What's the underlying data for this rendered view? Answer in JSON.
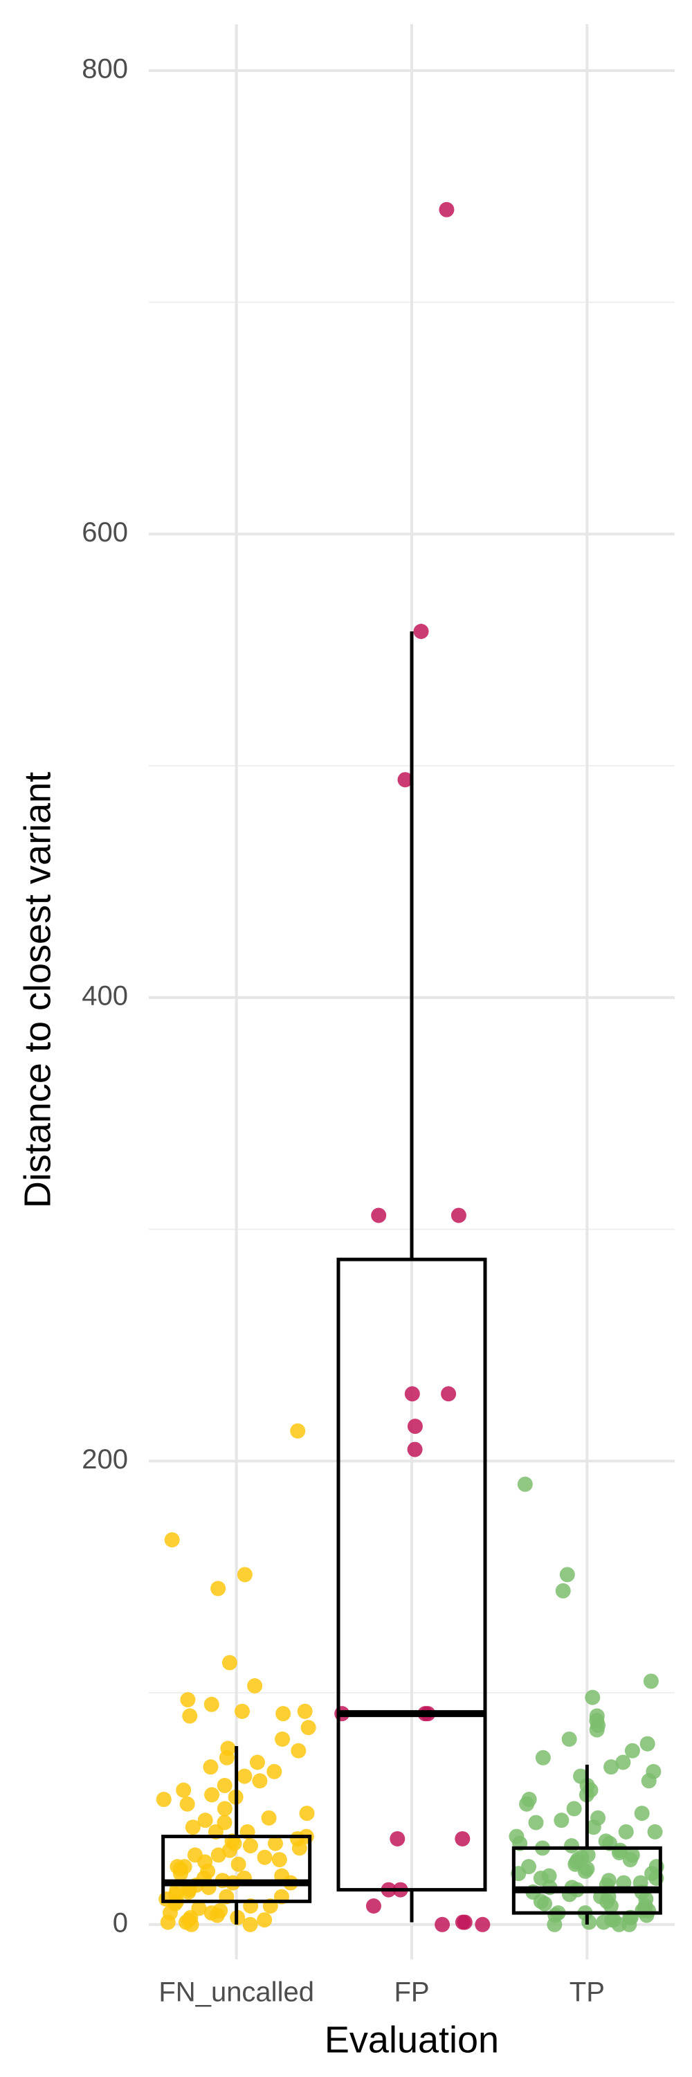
{
  "chart_data": {
    "type": "box",
    "x_label": "Evaluation",
    "y_label": "Distance to closest variant",
    "categories": [
      "FN_uncalled",
      "FP",
      "TP"
    ],
    "ylim": [
      -15,
      820
    ],
    "yticks": [
      0,
      200,
      400,
      600,
      800
    ],
    "grid": true,
    "groups": [
      {
        "color": "#fdc70f",
        "whisker_low": 0,
        "q1": 10,
        "median": 18,
        "q3": 38,
        "whisker_high": 77,
        "points": [
          213,
          166,
          151,
          145,
          113,
          103,
          97,
          95,
          92,
          92,
          91,
          90,
          85,
          80,
          76,
          75,
          72,
          70,
          68,
          66,
          64,
          62,
          60,
          58,
          56,
          55,
          54,
          52,
          50,
          48,
          46,
          45,
          44,
          42,
          40,
          38,
          37,
          36,
          35,
          34,
          33,
          32,
          30,
          29,
          28,
          27,
          26,
          25,
          24,
          23,
          22,
          21,
          20,
          19,
          18,
          18,
          17,
          16,
          15,
          14,
          13,
          12,
          11,
          10,
          9,
          8,
          7,
          6,
          5,
          4,
          3,
          2,
          1,
          0,
          0,
          1,
          2,
          3,
          5,
          8,
          12,
          15,
          20,
          25,
          30,
          35,
          40
        ]
      },
      {
        "color": "#c2185b",
        "whisker_low": 1,
        "q1": 15,
        "median": 91,
        "q3": 287,
        "whisker_high": 558,
        "points": [
          740,
          558,
          494,
          306,
          306,
          229,
          229,
          215,
          205,
          91,
          91,
          91,
          37,
          37,
          15,
          15,
          8,
          0,
          0,
          1,
          1
        ]
      },
      {
        "color": "#7bbd6d",
        "whisker_low": 0,
        "q1": 5,
        "median": 15,
        "q3": 33,
        "whisker_high": 69,
        "points": [
          190,
          151,
          144,
          105,
          98,
          90,
          88,
          86,
          84,
          80,
          78,
          75,
          72,
          70,
          68,
          66,
          64,
          62,
          60,
          58,
          56,
          54,
          52,
          50,
          48,
          46,
          44,
          42,
          40,
          38,
          36,
          35,
          34,
          33,
          32,
          31,
          30,
          29,
          28,
          27,
          26,
          25,
          24,
          23,
          22,
          21,
          20,
          19,
          18,
          17,
          16,
          15,
          14,
          13,
          12,
          11,
          10,
          9,
          8,
          7,
          6,
          5,
          4,
          3,
          2,
          1,
          0,
          0,
          0,
          1,
          2,
          3,
          4,
          5,
          6,
          8,
          10,
          12,
          14,
          16,
          18,
          20,
          22,
          25,
          28,
          30,
          35,
          40,
          45
        ]
      }
    ]
  }
}
